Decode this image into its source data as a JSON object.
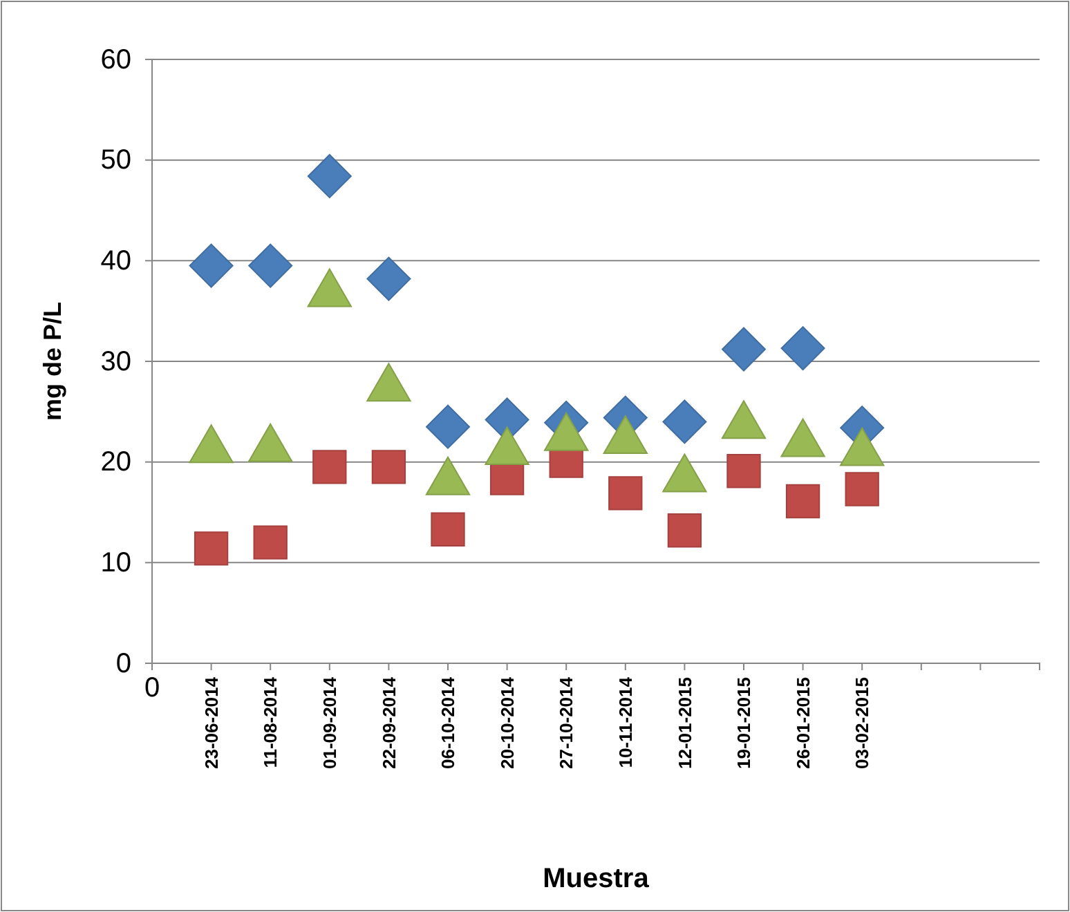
{
  "chart_data": {
    "type": "scatter",
    "xlabel": "Muestra",
    "ylabel": "mg de P/L",
    "categories": [
      "0",
      "23-06-2014",
      "11-08-2014",
      "01-09-2014",
      "22-09-2014",
      "06-10-2014",
      "20-10-2014",
      "27-10-2014",
      "10-11-2014",
      "12-01-2015",
      "19-01-2015",
      "26-01-2015",
      "03-02-2015",
      null,
      null
    ],
    "ylim": [
      0,
      60
    ],
    "yticks": [
      0,
      10,
      20,
      30,
      40,
      50,
      60
    ],
    "grid": "y",
    "series": [
      {
        "color": "#4a7ebb",
        "marker": "diamond",
        "values": [
          null,
          39.5,
          39.5,
          48.4,
          38.2,
          23.5,
          24.2,
          23.9,
          24.4,
          24.0,
          31.2,
          31.3,
          23.4,
          null,
          null
        ]
      },
      {
        "color": "#be4b48",
        "marker": "square",
        "values": [
          null,
          11.4,
          12.0,
          19.5,
          19.5,
          13.3,
          18.4,
          20.1,
          16.9,
          13.2,
          19.1,
          16.1,
          17.3,
          null,
          null
        ]
      },
      {
        "color": "#98b954",
        "marker": "triangle",
        "values": [
          null,
          21.2,
          21.3,
          36.7,
          27.3,
          18.0,
          21.0,
          22.4,
          22.1,
          18.3,
          23.6,
          21.8,
          20.9,
          null,
          null
        ]
      }
    ]
  }
}
